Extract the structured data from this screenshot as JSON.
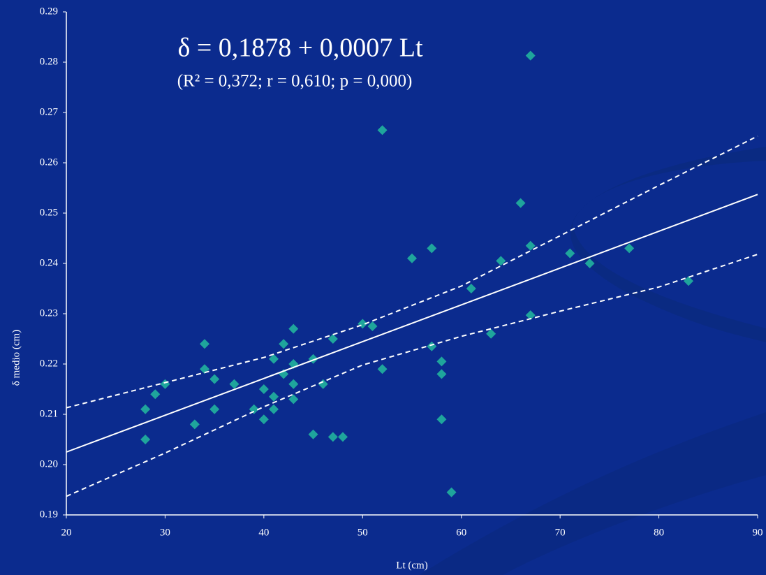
{
  "chart_data": {
    "type": "scatter",
    "title": "δ = 0,1878 + 0,0007 Lt",
    "subtitle": "(R² = 0,372; r = 0,610; p = 0,000)",
    "x_label": "Lt (cm)",
    "y_label": "δ medio (cm)",
    "xlim": [
      20,
      90
    ],
    "xticks": [
      20,
      30,
      40,
      50,
      60,
      70,
      80,
      90
    ],
    "ylim": [
      0.19,
      0.29
    ],
    "yticks": [
      0.19,
      {
        "value": 0.2,
        "label": "0.20"
      },
      0.21,
      0.22,
      0.23,
      0.24,
      0.25,
      0.26,
      0.27,
      0.28,
      0.29
    ],
    "series": [
      {
        "type": "scatter",
        "color": "#1fa59c",
        "x": [
          28,
          28,
          29,
          30,
          33,
          34,
          34,
          35,
          35,
          37,
          39,
          40,
          40,
          41,
          41,
          41,
          42,
          42,
          43,
          43,
          43,
          43,
          45,
          45,
          46,
          47,
          47,
          48,
          50,
          51,
          52,
          52,
          55,
          57,
          57,
          58,
          58,
          58,
          59,
          61,
          63,
          64,
          66,
          67,
          67,
          67,
          71,
          73,
          77,
          83
        ],
        "values": [
          0.211,
          0.205,
          0.214,
          0.216,
          0.208,
          0.224,
          0.219,
          0.217,
          0.211,
          0.216,
          0.211,
          0.215,
          0.209,
          0.221,
          0.2135,
          0.211,
          0.224,
          0.218,
          0.227,
          0.22,
          0.216,
          0.213,
          0.221,
          0.206,
          0.216,
          0.225,
          0.2055,
          0.2055,
          0.228,
          0.2275,
          0.2665,
          0.219,
          0.241,
          0.243,
          0.2235,
          0.2205,
          0.218,
          0.209,
          0.1945,
          0.235,
          0.226,
          0.2405,
          0.252,
          0.2813,
          0.2435,
          0.2297,
          0.242,
          0.24,
          0.243,
          0.2365
        ]
      },
      {
        "type": "line",
        "color": "#ffffff",
        "dashed": false,
        "x": [
          20,
          90
        ],
        "values": [
          0.2025,
          0.2537
        ]
      },
      {
        "type": "line",
        "color": "#ffffff",
        "dashed": true,
        "x": [
          20,
          30,
          40,
          50,
          60,
          70,
          80,
          90
        ],
        "values": [
          0.2113,
          0.2163,
          0.2213,
          0.2278,
          0.2355,
          0.2455,
          0.2555,
          0.2653
        ]
      },
      {
        "type": "line",
        "color": "#ffffff",
        "dashed": true,
        "x": [
          20,
          30,
          40,
          50,
          60,
          70,
          80,
          90
        ],
        "values": [
          0.1937,
          0.2023,
          0.2115,
          0.2198,
          0.2255,
          0.2305,
          0.2353,
          0.2418
        ]
      }
    ]
  }
}
